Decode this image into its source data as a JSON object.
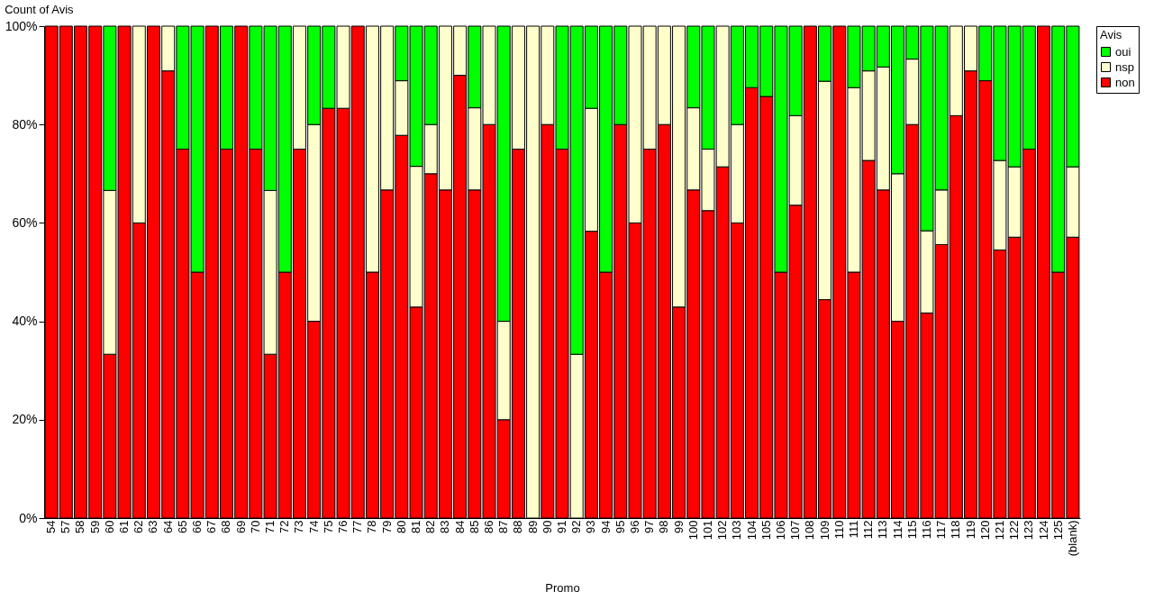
{
  "chart_data": {
    "type": "bar",
    "stacked": true,
    "title": "Count of Avis",
    "xlabel": "Promo",
    "legend_title": "Avis",
    "legend": "right",
    "grid": false,
    "categories": [
      "54",
      "57",
      "58",
      "59",
      "60",
      "61",
      "62",
      "63",
      "64",
      "65",
      "66",
      "67",
      "68",
      "69",
      "70",
      "71",
      "72",
      "73",
      "74",
      "75",
      "76",
      "77",
      "78",
      "79",
      "80",
      "81",
      "82",
      "83",
      "84",
      "85",
      "86",
      "87",
      "88",
      "89",
      "90",
      "91",
      "92",
      "93",
      "94",
      "95",
      "96",
      "97",
      "98",
      "99",
      "100",
      "101",
      "102",
      "103",
      "104",
      "105",
      "106",
      "107",
      "108",
      "109",
      "110",
      "111",
      "112",
      "113",
      "114",
      "115",
      "116",
      "117",
      "118",
      "119",
      "120",
      "121",
      "122",
      "123",
      "124",
      "125",
      "(blank)"
    ],
    "ylim": [
      0,
      100
    ],
    "yticks": [
      {
        "value": 0,
        "label": "0%"
      },
      {
        "value": 20,
        "label": "20%"
      },
      {
        "value": 40,
        "label": "40%"
      },
      {
        "value": 60,
        "label": "60%"
      },
      {
        "value": 80,
        "label": "80%"
      },
      {
        "value": 100,
        "label": "100%"
      }
    ],
    "series": [
      {
        "name": "non",
        "color": "#ff0000",
        "values": [
          100,
          100,
          100,
          100,
          33.3,
          100,
          60,
          100,
          90.9,
          75,
          50,
          100,
          75,
          100,
          75,
          33.3,
          50,
          75,
          40,
          83.3,
          83.3,
          100,
          50,
          66.7,
          77.8,
          42.9,
          70,
          66.7,
          90,
          66.7,
          80,
          20,
          75,
          0,
          80,
          75,
          0,
          58.3,
          50,
          80,
          60,
          75,
          80,
          42.9,
          66.7,
          62.5,
          71.4,
          60,
          87.5,
          85.7,
          50,
          63.6,
          100,
          44.4,
          100,
          50,
          72.7,
          66.7,
          40,
          80,
          41.7,
          55.6,
          81.8,
          90.9,
          88.9,
          54.5,
          57.1,
          75,
          100,
          50,
          57.1
        ]
      },
      {
        "name": "nsp",
        "color": "#ffffcc",
        "values": [
          0,
          0,
          0,
          0,
          33.3,
          0,
          40,
          0,
          9.1,
          0,
          0,
          0,
          0,
          0,
          0,
          33.3,
          0,
          25,
          40,
          0,
          16.7,
          0,
          50,
          33.3,
          11.1,
          28.6,
          10,
          33.3,
          10,
          16.7,
          20,
          20,
          25,
          100,
          20,
          0,
          33.3,
          25,
          0,
          0,
          40,
          25,
          20,
          57.1,
          16.7,
          12.5,
          28.6,
          20,
          0,
          0,
          0,
          18.2,
          0,
          44.4,
          0,
          37.5,
          18.2,
          25,
          30,
          13.3,
          16.7,
          11.1,
          18.2,
          9.1,
          0,
          18.2,
          14.3,
          0,
          0,
          0,
          14.3
        ]
      },
      {
        "name": "oui",
        "color": "#00ff00",
        "values": [
          0,
          0,
          0,
          0,
          33.4,
          0,
          0,
          0,
          0,
          25,
          50,
          0,
          25,
          0,
          25,
          33.4,
          50,
          0,
          20,
          16.7,
          0,
          0,
          0,
          0,
          11.1,
          28.5,
          20,
          0,
          0,
          16.6,
          0,
          60,
          0,
          0,
          0,
          25,
          66.7,
          16.7,
          50,
          20,
          0,
          0,
          0,
          0,
          16.6,
          25,
          0,
          20,
          12.5,
          14.3,
          50,
          18.2,
          0,
          11.2,
          0,
          12.5,
          9.1,
          8.3,
          30,
          6.7,
          41.6,
          33.3,
          0,
          0,
          11.1,
          27.3,
          28.6,
          25,
          0,
          50,
          28.6
        ]
      }
    ]
  }
}
